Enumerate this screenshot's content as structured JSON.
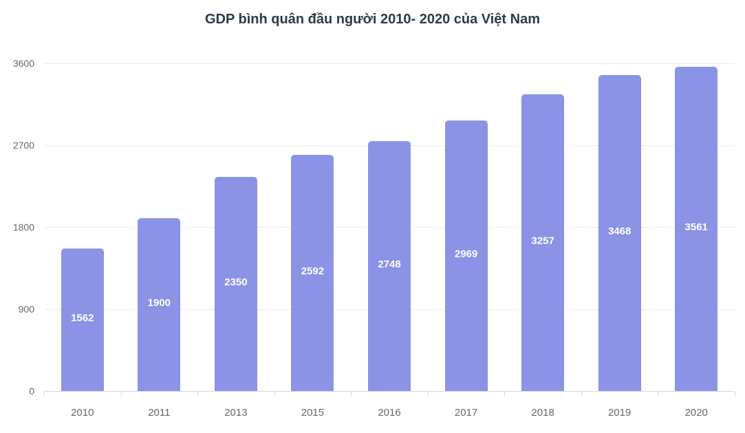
{
  "title": "GDP bình quân đầu người 2010- 2020 của Việt Nam",
  "chart_data": {
    "type": "bar",
    "title": "GDP bình quân đầu người 2010- 2020 của Việt Nam",
    "categories": [
      "2010",
      "2011",
      "2013",
      "2015",
      "2016",
      "2017",
      "2018",
      "2019",
      "2020"
    ],
    "values": [
      1562,
      1900,
      2350,
      2592,
      2748,
      2969,
      3257,
      3468,
      3561
    ],
    "xlabel": "",
    "ylabel": "",
    "ylim": [
      0,
      3600
    ],
    "yticks": [
      0,
      900,
      1800,
      2700,
      3600
    ],
    "grid": true,
    "legend": false,
    "value_labels_shown": true,
    "colors": {
      "bar": "#8b93e6",
      "value_label": "#ffffff",
      "axis_label": "#666666",
      "title": "#2c3a47",
      "gridline": "#ececec",
      "axis_line": "#d6d6d6",
      "background": "#ffffff"
    }
  }
}
